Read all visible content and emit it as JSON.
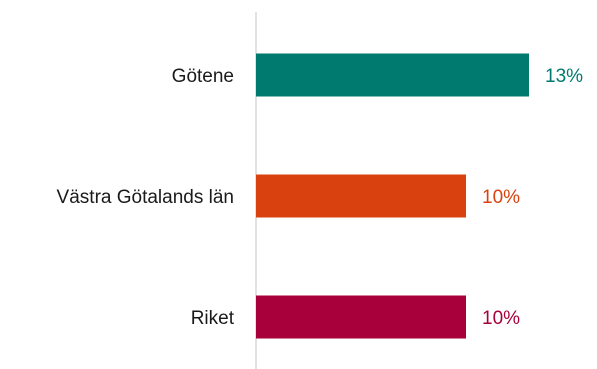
{
  "chart_data": {
    "type": "bar",
    "orientation": "horizontal",
    "categories": [
      "Götene",
      "Västra Götalands län",
      "Riket"
    ],
    "values": [
      13,
      10,
      10
    ],
    "value_labels": [
      "13%",
      "10%",
      "10%"
    ],
    "unit": "%",
    "colors": [
      "#007A6E",
      "#D9420F",
      "#A8003A"
    ],
    "title": "",
    "xlabel": "",
    "ylabel": "",
    "grid": false,
    "legend": "none"
  }
}
